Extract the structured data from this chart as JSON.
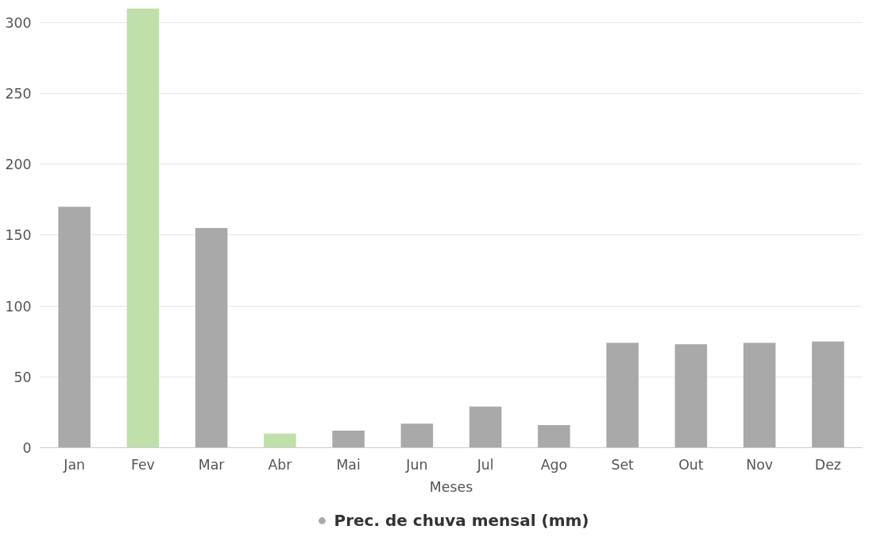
{
  "chart_data": {
    "type": "bar",
    "xlabel": "Meses",
    "categories": [
      "Jan",
      "Fev",
      "Mar",
      "Abr",
      "Mai",
      "Jun",
      "Jul",
      "Ago",
      "Set",
      "Out",
      "Nov",
      "Dez"
    ],
    "series": [
      {
        "name": "Prec. de chuva mensal (mm)",
        "color": "#a9a9a9",
        "colors": [
          "#a9a9a9",
          "#c0e0ab",
          "#a9a9a9",
          "#c0e0ab",
          "#a9a9a9",
          "#a9a9a9",
          "#a9a9a9",
          "#a9a9a9",
          "#a9a9a9",
          "#a9a9a9",
          "#a9a9a9",
          "#a9a9a9"
        ],
        "values": [
          170,
          310,
          155,
          10,
          12,
          17,
          29,
          16,
          74,
          73,
          74,
          75
        ]
      }
    ],
    "ylim": [
      0,
      310
    ],
    "yticks": [
      0,
      50,
      100,
      150,
      200,
      250,
      300
    ],
    "grid": "y",
    "legend": "bottom"
  }
}
